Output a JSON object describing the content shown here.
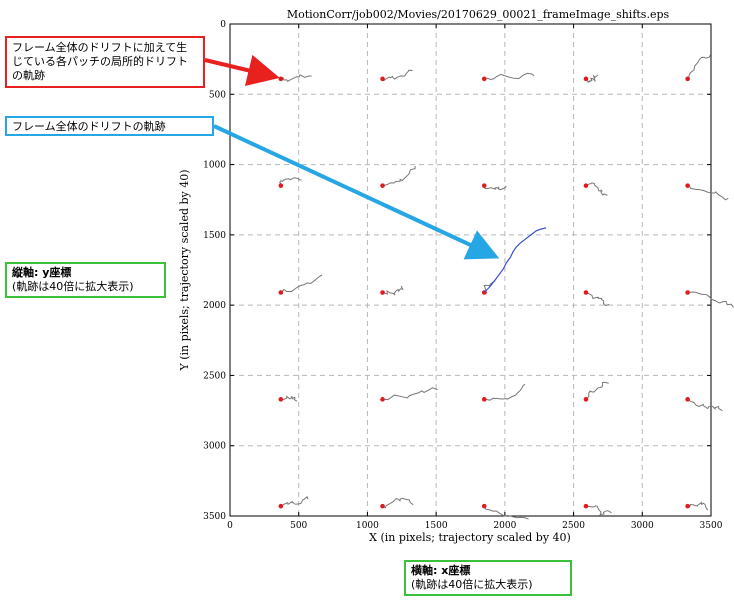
{
  "chart_data": {
    "type": "scatter",
    "title": "MotionCorr/job002/Movies/20170629_00021_frameImage_shifts.eps",
    "xlabel": "X (in pixels; trajectory scaled by 40)",
    "ylabel": "Y (in pixels; trajectory scaled by 40)",
    "xlim": [
      0,
      3500
    ],
    "ylim": [
      3500,
      0
    ],
    "y_inverted": true,
    "xticks": [
      "0",
      "500",
      "1000",
      "1500",
      "2000",
      "2500",
      "3000",
      "3500"
    ],
    "yticks": [
      "0",
      "500",
      "1000",
      "1500",
      "2000",
      "2500",
      "3000",
      "3500"
    ],
    "grid": true,
    "patch_centers": {
      "x": [
        370,
        1110,
        1850,
        2590,
        3330
      ],
      "y": [
        390,
        1150,
        1910,
        2670,
        3430
      ]
    },
    "global_trajectory": {
      "start": [
        1850,
        1910
      ],
      "points": [
        [
          1850,
          1910
        ],
        [
          1890,
          1870
        ],
        [
          1930,
          1820
        ],
        [
          1960,
          1780
        ],
        [
          1990,
          1740
        ],
        [
          2010,
          1700
        ],
        [
          2040,
          1660
        ],
        [
          2060,
          1620
        ],
        [
          2080,
          1590
        ],
        [
          2110,
          1560
        ],
        [
          2150,
          1530
        ],
        [
          2190,
          1500
        ],
        [
          2230,
          1470
        ],
        [
          2260,
          1460
        ],
        [
          2300,
          1450
        ]
      ]
    },
    "colors": {
      "global": "#3a4fd6",
      "local": "#777777",
      "start": "#e31a1c"
    }
  },
  "annotations": {
    "local_drift": "フレーム全体のドリフトに加えて生じている各パッチの局所的ドリフトの軌跡",
    "global_drift": "フレーム全体のドリフトの軌跡",
    "y_axis_title": "縦軸: y座標",
    "y_axis_note": "(軌跡は40倍に拡大表示)",
    "x_axis_title": "横軸: x座標",
    "x_axis_note": "(軌跡は40倍に拡大表示)",
    "colors": {
      "red": "#e8211f",
      "blue": "#27a6e6",
      "green": "#3cc13c"
    }
  }
}
